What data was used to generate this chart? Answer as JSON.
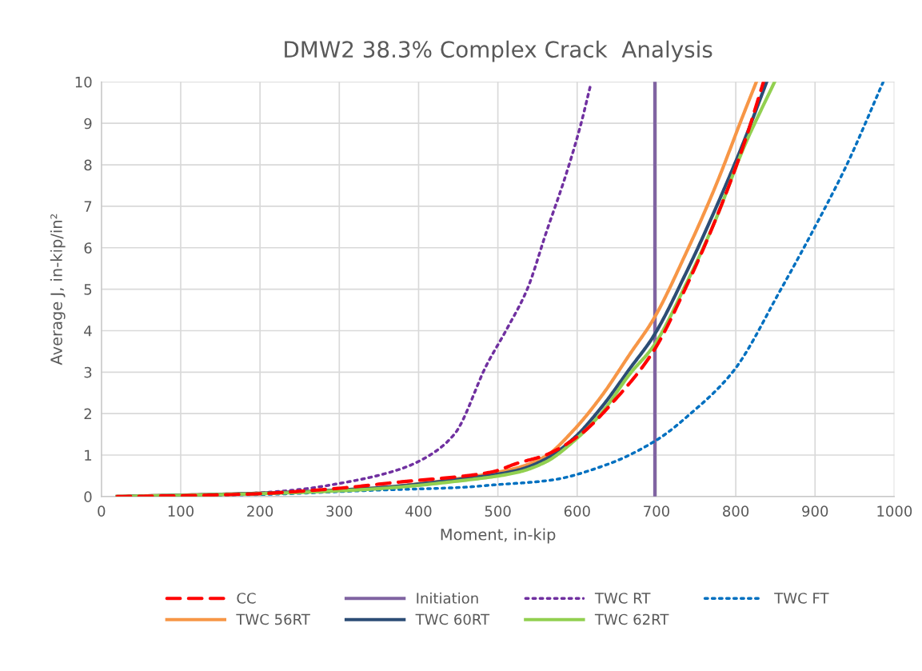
{
  "chart_data": {
    "type": "line",
    "title": "DMW2 38.3% Complex Crack  Analysis",
    "xlabel": "Moment, in-kip",
    "ylabel": "Average J, in-kip/in²",
    "xlim": [
      0,
      1000
    ],
    "xticks": [
      0,
      100,
      200,
      300,
      400,
      500,
      600,
      700,
      800,
      900,
      1000
    ],
    "ylim": [
      0,
      10
    ],
    "yticks": [
      0,
      1,
      2,
      3,
      4,
      5,
      6,
      7,
      8,
      9,
      10
    ],
    "grid": true,
    "legend": "bottom",
    "series": [
      {
        "name": "CC",
        "color": "#ff0000",
        "line_style": "dashed",
        "x": [
          20,
          100,
          202,
          237,
          300,
          376,
          460,
          494,
          524,
          560,
          603,
          649,
          696,
          738,
          774,
          810,
          835
        ],
        "values": [
          0,
          0.02,
          0.07,
          0.11,
          0.2,
          0.35,
          0.5,
          0.6,
          0.8,
          1.0,
          1.48,
          2.36,
          3.5,
          5.08,
          6.65,
          8.48,
          10
        ]
      },
      {
        "name": "Initiation",
        "color": "#8064a2",
        "line_style": "solid",
        "x": [
          698,
          698
        ],
        "values": [
          0,
          10
        ]
      },
      {
        "name": "TWC RT",
        "color": "#7030a0",
        "line_style": "dotted",
        "x": [
          20,
          100,
          170,
          240,
          310,
          375,
          410,
          445,
          486,
          511,
          537,
          561,
          586,
          604,
          617
        ],
        "values": [
          0,
          0.02,
          0.06,
          0.15,
          0.35,
          0.65,
          0.95,
          1.5,
          3.18,
          4.03,
          5.0,
          6.37,
          7.77,
          8.93,
          9.93
        ]
      },
      {
        "name": "TWC FT",
        "color": "#0070c0",
        "line_style": "dotted",
        "x": [
          20,
          202,
          341,
          453,
          494,
          565,
          636,
          700,
          743,
          796,
          857,
          904,
          940,
          986
        ],
        "values": [
          0,
          0.05,
          0.15,
          0.22,
          0.28,
          0.39,
          0.76,
          1.36,
          2.0,
          3.0,
          5.0,
          6.65,
          8.0,
          10
        ]
      },
      {
        "name": "TWC 56RT",
        "color": "#f79646",
        "line_style": "solid",
        "x": [
          20,
          202,
          341,
          453,
          524,
          560,
          596,
          631,
          667,
          696,
          738,
          774,
          810,
          826
        ],
        "values": [
          0,
          0.08,
          0.2,
          0.44,
          0.69,
          0.97,
          1.61,
          2.43,
          3.45,
          4.27,
          5.9,
          7.46,
          9.23,
          10
        ]
      },
      {
        "name": "TWC 60RT",
        "color": "#2c4d75",
        "line_style": "solid",
        "x": [
          20,
          202,
          341,
          453,
          524,
          560,
          596,
          631,
          667,
          696,
          738,
          774,
          810,
          839
        ],
        "values": [
          0,
          0.08,
          0.2,
          0.42,
          0.63,
          0.9,
          1.41,
          2.16,
          3.1,
          3.86,
          5.42,
          6.92,
          8.55,
          10
        ]
      },
      {
        "name": "TWC 62RT",
        "color": "#92d050",
        "line_style": "solid",
        "x": [
          20,
          202,
          341,
          453,
          524,
          560,
          596,
          631,
          667,
          696,
          738,
          774,
          810,
          849
        ],
        "values": [
          0,
          0.07,
          0.18,
          0.38,
          0.58,
          0.83,
          1.34,
          2.02,
          2.97,
          3.62,
          5.15,
          6.65,
          8.41,
          10
        ]
      }
    ]
  }
}
